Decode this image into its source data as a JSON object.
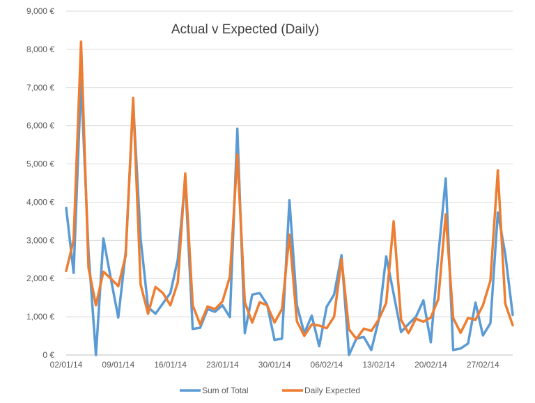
{
  "chart_data": {
    "type": "line",
    "title": "Actual v Expected (Daily)",
    "xlabel": "",
    "ylabel": "",
    "ylim": [
      0,
      9000
    ],
    "y_ticks": [
      "0 €",
      "1,000 €",
      "2,000 €",
      "3,000 €",
      "4,000 €",
      "5,000 €",
      "6,000 €",
      "7,000 €",
      "8,000 €",
      "9,000 €"
    ],
    "y_tick_values": [
      0,
      1000,
      2000,
      3000,
      4000,
      5000,
      6000,
      7000,
      8000,
      9000
    ],
    "x_tick_labels": [
      "02/01/14",
      "09/01/14",
      "16/01/14",
      "23/01/14",
      "30/01/14",
      "06/02/14",
      "13/02/14",
      "20/02/14",
      "27/02/14"
    ],
    "x_tick_indices": [
      0,
      7,
      14,
      21,
      28,
      35,
      42,
      49,
      56
    ],
    "grid": true,
    "legend_position": "bottom",
    "series": [
      {
        "name": "Sum of Total",
        "color": "#5b9bd5",
        "values": [
          3850,
          2150,
          7200,
          2700,
          0,
          3050,
          2000,
          980,
          2700,
          6600,
          3050,
          1250,
          1080,
          1350,
          1620,
          2500,
          4600,
          680,
          710,
          1200,
          1130,
          1300,
          990,
          5920,
          570,
          1580,
          1620,
          1320,
          390,
          430,
          4050,
          1300,
          570,
          1030,
          230,
          1260,
          1580,
          2610,
          0,
          430,
          470,
          130,
          920,
          2580,
          1600,
          600,
          810,
          1000,
          1430,
          330,
          2600,
          4620,
          130,
          170,
          300,
          1370,
          510,
          830,
          3730,
          2640,
          1050
        ]
      },
      {
        "name": "Daily Expected",
        "color": "#ed7d31",
        "values": [
          2200,
          3000,
          8200,
          2280,
          1300,
          2180,
          2000,
          1800,
          2600,
          6730,
          1850,
          1080,
          1780,
          1620,
          1300,
          1900,
          4750,
          1300,
          800,
          1270,
          1200,
          1400,
          2050,
          5250,
          1380,
          850,
          1380,
          1300,
          850,
          1200,
          3150,
          880,
          500,
          800,
          770,
          700,
          1000,
          2510,
          670,
          420,
          690,
          630,
          930,
          1360,
          3500,
          920,
          570,
          950,
          870,
          980,
          1460,
          3680,
          970,
          580,
          970,
          920,
          1300,
          1940,
          4830,
          1340,
          780
        ]
      }
    ]
  }
}
